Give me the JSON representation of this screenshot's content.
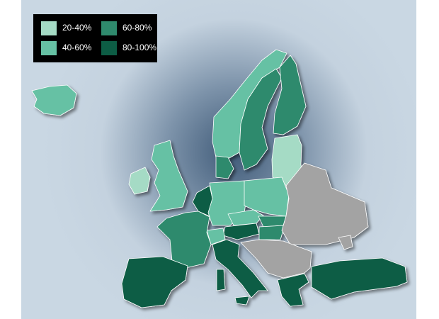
{
  "legend": {
    "items": [
      {
        "label": "20-40%",
        "color": "#a5dbc5"
      },
      {
        "label": "40-60%",
        "color": "#66c1a4"
      },
      {
        "label": "60-80%",
        "color": "#2f8a6d"
      },
      {
        "label": "80-100%",
        "color": "#0d5d45"
      }
    ],
    "no_data_color": "#a3a3a3"
  }
}
